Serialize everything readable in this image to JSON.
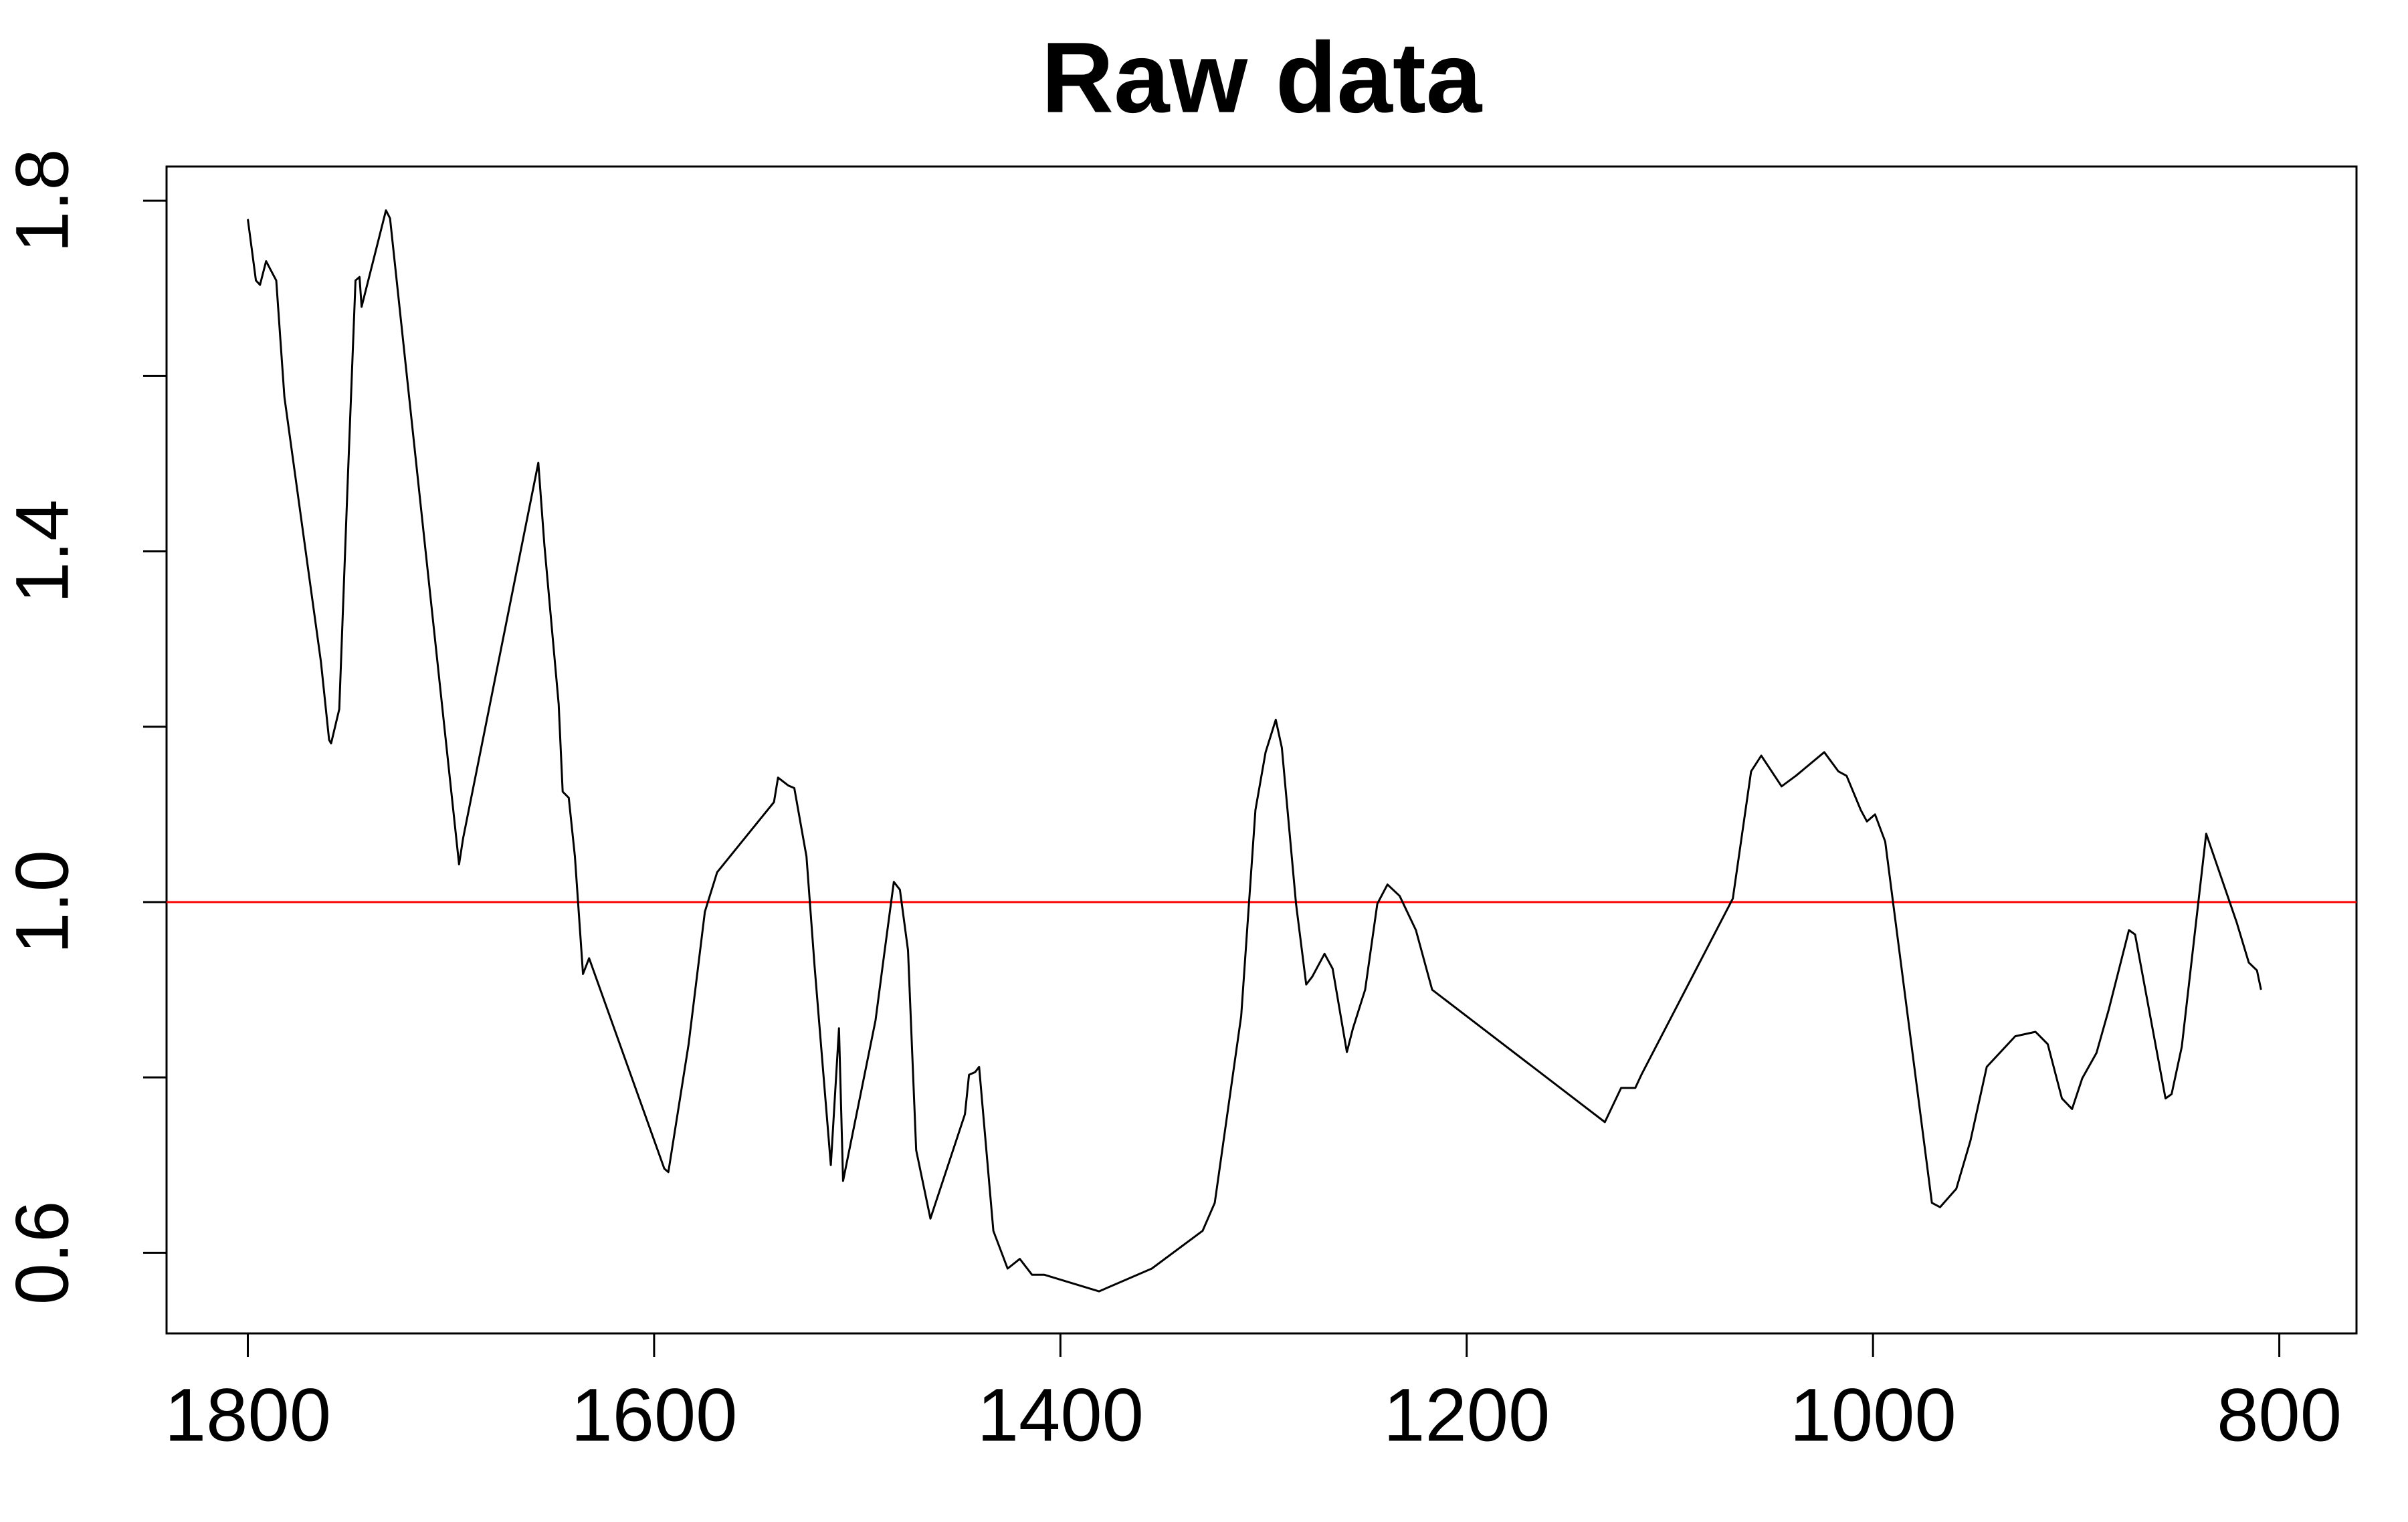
{
  "chart_data": {
    "type": "line",
    "title": "Raw data",
    "x": [
      1800,
      1796,
      1794,
      1791,
      1786,
      1782,
      1764,
      1760,
      1759,
      1755,
      1751,
      1747,
      1745,
      1744,
      1732,
      1730,
      1696,
      1694,
      1657,
      1654,
      1647,
      1645,
      1642,
      1639,
      1635,
      1632,
      1595,
      1593,
      1583,
      1575,
      1569,
      1541,
      1539,
      1534,
      1531,
      1525,
      1521,
      1513,
      1509,
      1507,
      1491,
      1487,
      1482,
      1479,
      1475,
      1471,
      1464,
      1463,
      1447,
      1445,
      1442,
      1440,
      1433,
      1426,
      1420,
      1414,
      1408,
      1381,
      1355,
      1330,
      1324,
      1311,
      1304,
      1299,
      1294,
      1291,
      1284,
      1279,
      1276,
      1270,
      1266,
      1259,
      1256,
      1250,
      1244,
      1239,
      1233,
      1225,
      1217,
      1132,
      1124,
      1117,
      1114,
      1069,
      1060,
      1055,
      1045,
      1038,
      1024,
      1017,
      1013,
      1006,
      1003,
      999,
      994,
      971,
      967,
      959,
      952,
      944,
      930,
      920,
      914,
      907,
      902,
      897,
      890,
      884,
      874,
      871,
      856,
      853,
      848,
      836,
      821,
      815,
      811,
      809
    ],
    "values": [
      1.779,
      1.709,
      1.704,
      1.731,
      1.709,
      1.576,
      1.274,
      1.185,
      1.181,
      1.22,
      1.469,
      1.709,
      1.713,
      1.679,
      1.789,
      1.78,
      1.043,
      1.073,
      1.501,
      1.407,
      1.226,
      1.126,
      1.119,
      1.052,
      0.918,
      0.936,
      0.696,
      0.692,
      0.838,
      0.989,
      1.034,
      1.114,
      1.142,
      1.133,
      1.13,
      1.052,
      0.927,
      0.7,
      0.856,
      0.682,
      0.865,
      0.936,
      1.023,
      1.014,
      0.945,
      0.717,
      0.639,
      0.646,
      0.758,
      0.803,
      0.806,
      0.812,
      0.625,
      0.582,
      0.593,
      0.575,
      0.575,
      0.556,
      0.582,
      0.625,
      0.657,
      0.87,
      1.105,
      1.171,
      1.208,
      1.176,
      0.998,
      0.906,
      0.915,
      0.941,
      0.924,
      0.829,
      0.856,
      0.9,
      0.998,
      1.02,
      1.007,
      0.968,
      0.9,
      0.749,
      0.788,
      0.788,
      0.803,
      1.004,
      1.149,
      1.167,
      1.132,
      1.144,
      1.171,
      1.149,
      1.144,
      1.105,
      1.092,
      1.1,
      1.069,
      0.657,
      0.652,
      0.673,
      0.728,
      0.812,
      0.847,
      0.852,
      0.838,
      0.776,
      0.764,
      0.799,
      0.828,
      0.877,
      0.968,
      0.963,
      0.776,
      0.781,
      0.835,
      1.078,
      0.977,
      0.931,
      0.922,
      0.9
    ],
    "color": "#000000",
    "xlim": [
      1840,
      762
    ],
    "xticks": [
      1800,
      1600,
      1400,
      1200,
      1000,
      800
    ],
    "ylim": [
      0.508,
      1.839
    ],
    "yticks": [
      0.6,
      {
        "value": 1,
        "label": "1.0"
      },
      1.4,
      1.8
    ],
    "yminorticks": [
      0.8,
      1.2,
      1.6
    ],
    "hline": {
      "value": 1,
      "color": "#ff0000"
    }
  }
}
